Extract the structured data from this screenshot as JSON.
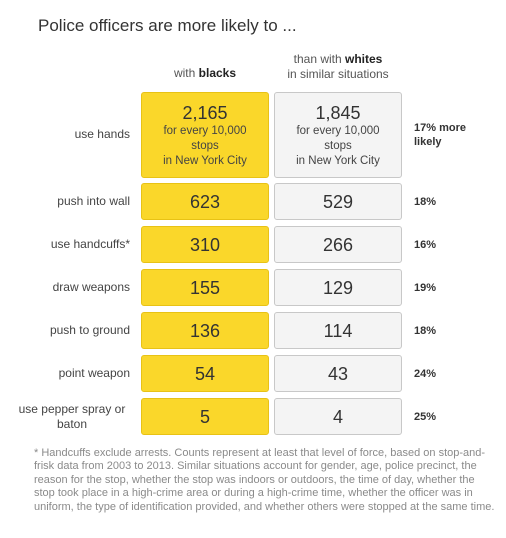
{
  "title": "Police officers are more likely to ...",
  "columns": {
    "black_prefix": "with ",
    "black_bold": "blacks",
    "white_line1_prefix": "than with ",
    "white_line1_bold": "whites",
    "white_line2": "in similar situations"
  },
  "first_row_note": {
    "line1": "for every 10,000",
    "line2": "stops",
    "line3": "in New York City"
  },
  "chart_data": {
    "type": "table",
    "title": "Police officers are more likely to ...",
    "columns": [
      "with blacks",
      "than with whites in similar situations",
      ""
    ],
    "rows": [
      {
        "label": "use hands",
        "blacks": "2,165",
        "whites": "1,845",
        "diff": "17% more likely"
      },
      {
        "label": "push into wall",
        "blacks": "623",
        "whites": "529",
        "diff": "18%"
      },
      {
        "label": "use handcuffs*",
        "blacks": "310",
        "whites": "266",
        "diff": "16%"
      },
      {
        "label": "draw weapons",
        "blacks": "155",
        "whites": "129",
        "diff": "19%"
      },
      {
        "label": "push to ground",
        "blacks": "136",
        "whites": "114",
        "diff": "18%"
      },
      {
        "label": "point weapon",
        "blacks": "54",
        "whites": "43",
        "diff": "24%"
      },
      {
        "label": "use pepper spray or baton",
        "blacks": "5",
        "whites": "4",
        "diff": "25%"
      }
    ]
  },
  "footnote": "* Handcuffs exclude arrests. Counts represent at least that level of force, based on stop-and-frisk data from 2003 to 2013. Similar situations account for gender, age, police precinct, the reason for the stop, whether the stop was indoors or outdoors, the time of day, whether the stop took place in a high-crime area or during a high-crime time, whether the officer was in uniform, the type of identification provided, and whether others were stopped at the same time.",
  "colors": {
    "black_cell": "#fad72a",
    "white_cell": "#f4f4f4"
  }
}
